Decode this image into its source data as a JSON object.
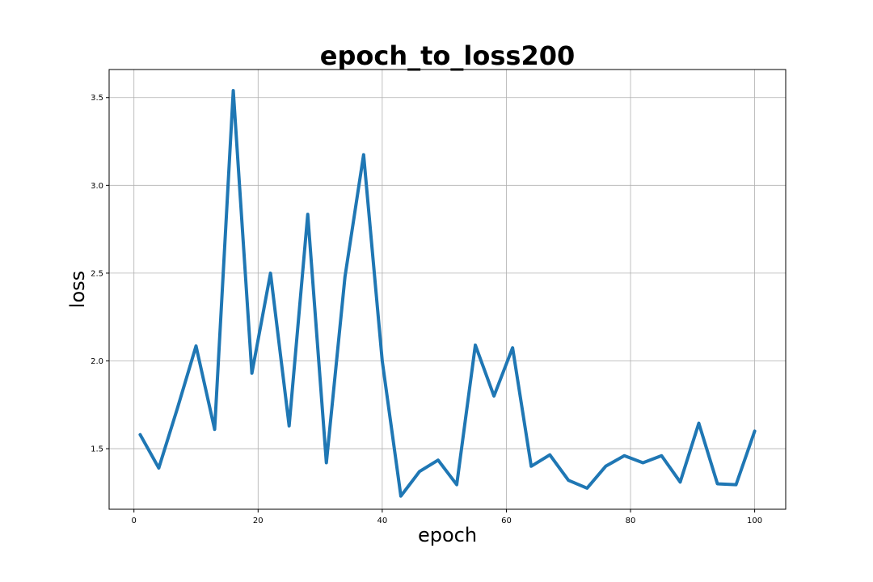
{
  "chart_data": {
    "type": "line",
    "title": "epoch_to_loss200",
    "xlabel": "epoch",
    "ylabel": "loss",
    "xlim": [
      -4,
      105
    ],
    "ylim": [
      1.155,
      3.66
    ],
    "xticks": [
      0,
      20,
      40,
      60,
      80,
      100
    ],
    "yticks": [
      1.5,
      2.0,
      2.5,
      3.0,
      3.5
    ],
    "ytick_labels": [
      "1.5",
      "2.0",
      "2.5",
      "3.0",
      "3.5"
    ],
    "grid": true,
    "series": [
      {
        "color": "#1f77b4",
        "x": [
          1,
          4,
          7,
          10,
          13,
          16,
          19,
          22,
          25,
          28,
          31,
          34,
          37,
          40,
          43,
          46,
          49,
          52,
          55,
          58,
          61,
          64,
          67,
          70,
          73,
          76,
          79,
          82,
          85,
          88,
          91,
          94,
          97,
          100
        ],
        "y": [
          1.58,
          1.39,
          1.73,
          2.085,
          1.61,
          3.54,
          1.93,
          2.5,
          1.63,
          2.835,
          1.42,
          2.48,
          3.175,
          2.0,
          1.23,
          1.37,
          1.435,
          1.295,
          2.09,
          1.8,
          2.075,
          1.4,
          1.465,
          1.32,
          1.275,
          1.4,
          1.46,
          1.42,
          1.46,
          1.31,
          1.645,
          1.3,
          1.295,
          1.6
        ]
      }
    ]
  }
}
